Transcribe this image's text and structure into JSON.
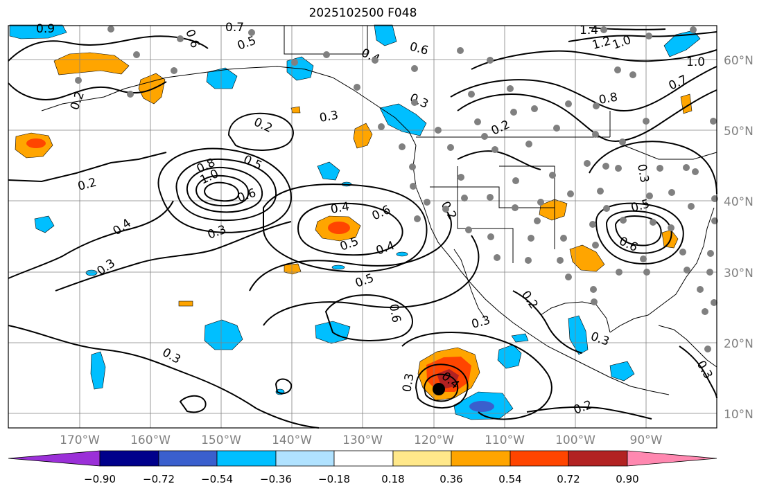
{
  "title": "2025102500 F048",
  "map": {
    "lon_ticks": [
      "170°W",
      "160°W",
      "150°W",
      "140°W",
      "130°W",
      "120°W",
      "110°W",
      "100°W",
      "90°W"
    ],
    "lat_ticks": [
      "60°N",
      "50°N",
      "40°N",
      "30°N",
      "20°N",
      "10°N"
    ],
    "gridlines": true,
    "storm_center_marker": "black-dot"
  },
  "colorbar": {
    "tick_labels": [
      "−0.90",
      "−0.72",
      "−0.54",
      "−0.36",
      "−0.18",
      "0.18",
      "0.36",
      "0.54",
      "0.72",
      "0.90"
    ],
    "colors": [
      "#9b30d8",
      "#00008b",
      "#3a5fcd",
      "#00bfff",
      "#b0e2ff",
      "#ffffff",
      "#ffe88a",
      "#ffa500",
      "#ff4500",
      "#b22222",
      "#ff88b0"
    ]
  },
  "contour_labels": [
    "0.9",
    "0.7",
    "0.5",
    "0.6",
    "0.4",
    "0.6",
    "1.4",
    "1.2",
    "1.0",
    "1.0",
    "0.7",
    "0.8",
    "0.2",
    "0.3",
    "0.3",
    "0.3",
    "0.2",
    "0.8",
    "1.0",
    "0.5",
    "0.6",
    "0.2",
    "0.4",
    "0.3",
    "0.3",
    "0.4",
    "0.6",
    "0.5",
    "0.4",
    "0.5",
    "0.6",
    "0.2",
    "0.2",
    "0.3",
    "0.3",
    "0.4",
    "0.3",
    "0.2",
    "0.3",
    "0.5",
    "0.6",
    "0.2",
    "0.3"
  ],
  "colors": {
    "fill_orange": "#ffa500",
    "fill_red": "#ff4500",
    "fill_dark_red": "#b22222",
    "fill_blue": "#00bfff",
    "fill_dark_blue": "#3a5fcd",
    "station_gray": "#808080"
  }
}
